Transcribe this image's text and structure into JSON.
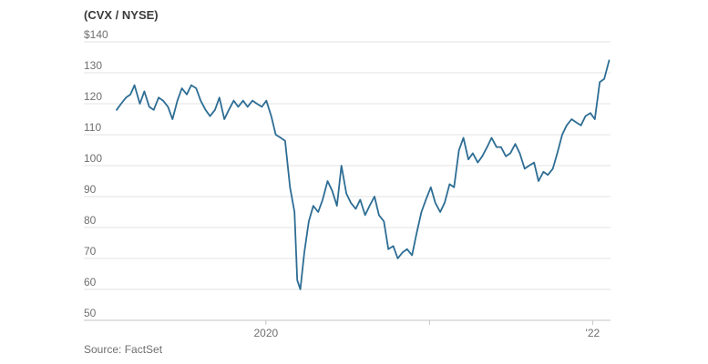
{
  "chart_data": {
    "type": "line",
    "subtitle": "(CVX / NYSE)",
    "source": "Source: FactSet",
    "y_tick_labels": [
      "$140",
      "130",
      "120",
      "110",
      "100",
      "90",
      "80",
      "70",
      "60",
      "50"
    ],
    "y_ticks": [
      140,
      130,
      120,
      110,
      100,
      90,
      80,
      70,
      60,
      50
    ],
    "ylim": [
      50,
      140
    ],
    "x_tick_labels": [
      "2020",
      "'22"
    ],
    "x_tick_positions": [
      "2020-01-01",
      "2022-01-01"
    ],
    "x_minor_ticks": [
      "2021-01-01"
    ],
    "xlim": [
      "2019-02-01",
      "2022-02-10"
    ],
    "grid": "horizontal",
    "colors": {
      "line": "#2d6d94",
      "grid": "#e3e3e3",
      "axis": "#c4c4c4",
      "text": "#6f6f6f"
    },
    "series": [
      {
        "x": [
          "2019-02-01",
          "2019-02-11",
          "2019-02-22",
          "2019-03-04",
          "2019-03-13",
          "2019-03-25",
          "2019-04-04",
          "2019-04-15",
          "2019-04-25",
          "2019-05-06",
          "2019-05-16",
          "2019-05-27",
          "2019-06-06",
          "2019-06-17",
          "2019-06-27",
          "2019-07-08",
          "2019-07-18",
          "2019-07-29",
          "2019-08-08",
          "2019-08-19",
          "2019-08-29",
          "2019-09-09",
          "2019-09-19",
          "2019-09-30",
          "2019-10-10",
          "2019-10-21",
          "2019-10-31",
          "2019-11-11",
          "2019-11-21",
          "2019-12-02",
          "2019-12-12",
          "2019-12-23",
          "2020-01-02",
          "2020-01-13",
          "2020-01-23",
          "2020-02-03",
          "2020-02-13",
          "2020-02-24",
          "2020-03-05",
          "2020-03-11",
          "2020-03-18",
          "2020-03-27",
          "2020-04-06",
          "2020-04-16",
          "2020-04-27",
          "2020-05-07",
          "2020-05-18",
          "2020-05-28",
          "2020-06-08",
          "2020-06-18",
          "2020-06-29",
          "2020-07-09",
          "2020-07-20",
          "2020-07-30",
          "2020-08-10",
          "2020-08-20",
          "2020-08-31",
          "2020-09-10",
          "2020-09-21",
          "2020-10-01",
          "2020-10-12",
          "2020-10-22",
          "2020-11-02",
          "2020-11-12",
          "2020-11-23",
          "2020-12-03",
          "2020-12-14",
          "2020-12-24",
          "2021-01-04",
          "2021-01-14",
          "2021-01-25",
          "2021-02-04",
          "2021-02-15",
          "2021-02-25",
          "2021-03-08",
          "2021-03-18",
          "2021-03-29",
          "2021-04-08",
          "2021-04-19",
          "2021-04-29",
          "2021-05-10",
          "2021-05-20",
          "2021-05-31",
          "2021-06-10",
          "2021-06-21",
          "2021-07-01",
          "2021-07-12",
          "2021-07-22",
          "2021-08-02",
          "2021-08-12",
          "2021-08-23",
          "2021-09-02",
          "2021-09-13",
          "2021-09-23",
          "2021-10-04",
          "2021-10-14",
          "2021-10-25",
          "2021-11-04",
          "2021-11-15",
          "2021-11-25",
          "2021-12-06",
          "2021-12-16",
          "2021-12-27",
          "2022-01-06",
          "2022-01-17",
          "2022-01-27",
          "2022-02-07"
        ],
        "y": [
          118,
          120,
          122,
          123,
          126,
          120,
          124,
          119,
          118,
          122,
          121,
          119,
          115,
          121,
          125,
          123,
          126,
          125,
          121,
          118,
          116,
          118,
          122,
          115,
          118,
          121,
          119,
          121,
          119,
          121,
          120,
          119,
          121,
          116,
          110,
          109,
          108,
          93,
          85,
          63,
          60,
          72,
          82,
          87,
          85,
          89,
          95,
          92,
          87,
          100,
          91,
          88,
          86,
          89,
          84,
          87,
          90,
          84,
          82,
          73,
          74,
          70,
          72,
          73,
          71,
          78,
          85,
          89,
          93,
          88,
          85,
          88,
          94,
          93,
          105,
          109,
          102,
          104,
          101,
          103,
          106,
          109,
          106,
          106,
          103,
          104,
          107,
          104,
          99,
          100,
          101,
          95,
          98,
          97,
          99,
          104,
          110,
          113,
          115,
          114,
          113,
          116,
          117,
          115,
          127,
          128,
          134
        ]
      }
    ]
  }
}
